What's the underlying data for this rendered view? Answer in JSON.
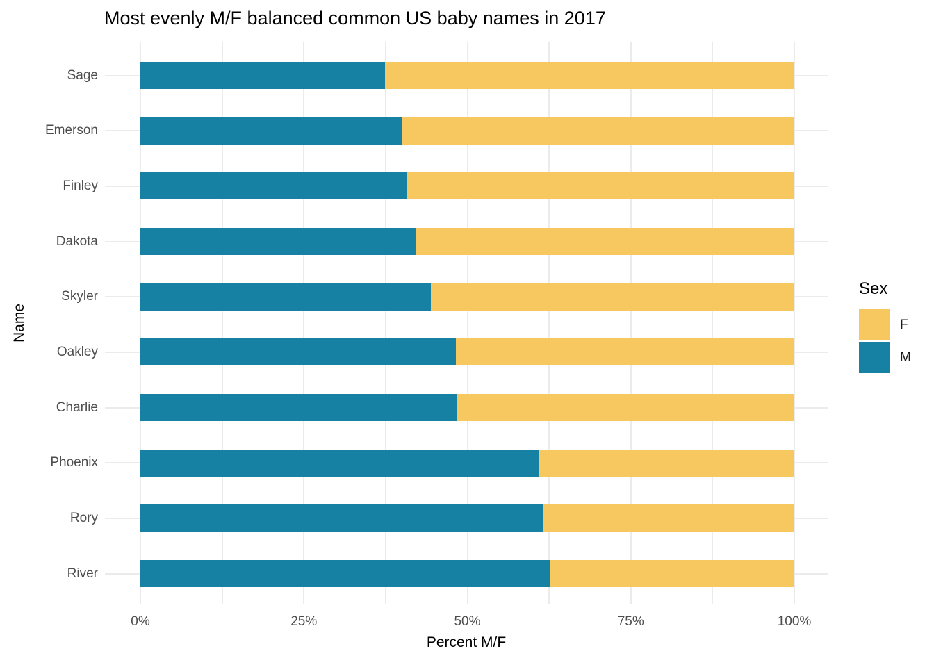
{
  "chart_data": {
    "type": "bar",
    "orientation": "horizontal",
    "stacked": true,
    "title": "Most evenly M/F balanced common US baby names in 2017",
    "xlabel": "Percent M/F",
    "ylabel": "Name",
    "categories": [
      "Sage",
      "Emerson",
      "Finley",
      "Dakota",
      "Skyler",
      "Oakley",
      "Charlie",
      "Phoenix",
      "Rory",
      "River"
    ],
    "series": [
      {
        "name": "M",
        "color": "#1681A2",
        "values": [
          37.4,
          40.0,
          40.8,
          42.2,
          44.4,
          48.2,
          48.3,
          61.0,
          61.6,
          62.6
        ]
      },
      {
        "name": "F",
        "color": "#F6C85F",
        "values": [
          62.6,
          60.0,
          59.2,
          57.8,
          55.6,
          51.8,
          51.7,
          39.0,
          38.4,
          37.4
        ]
      }
    ],
    "xlim": [
      0,
      100
    ],
    "x_tick_labels": [
      "0%",
      "25%",
      "50%",
      "75%",
      "100%"
    ],
    "x_tick_values": [
      0,
      25,
      50,
      75,
      100
    ],
    "x_minor_tick_values": [
      12.5,
      37.5,
      62.5,
      87.5
    ],
    "grid": "on",
    "grid_color": "#EBEBEB",
    "background_color": "#FFFFFF",
    "legend": {
      "title": "Sex",
      "position": "right",
      "entries": [
        {
          "label": "F",
          "color": "#F6C85F"
        },
        {
          "label": "M",
          "color": "#1681A2"
        }
      ]
    }
  }
}
